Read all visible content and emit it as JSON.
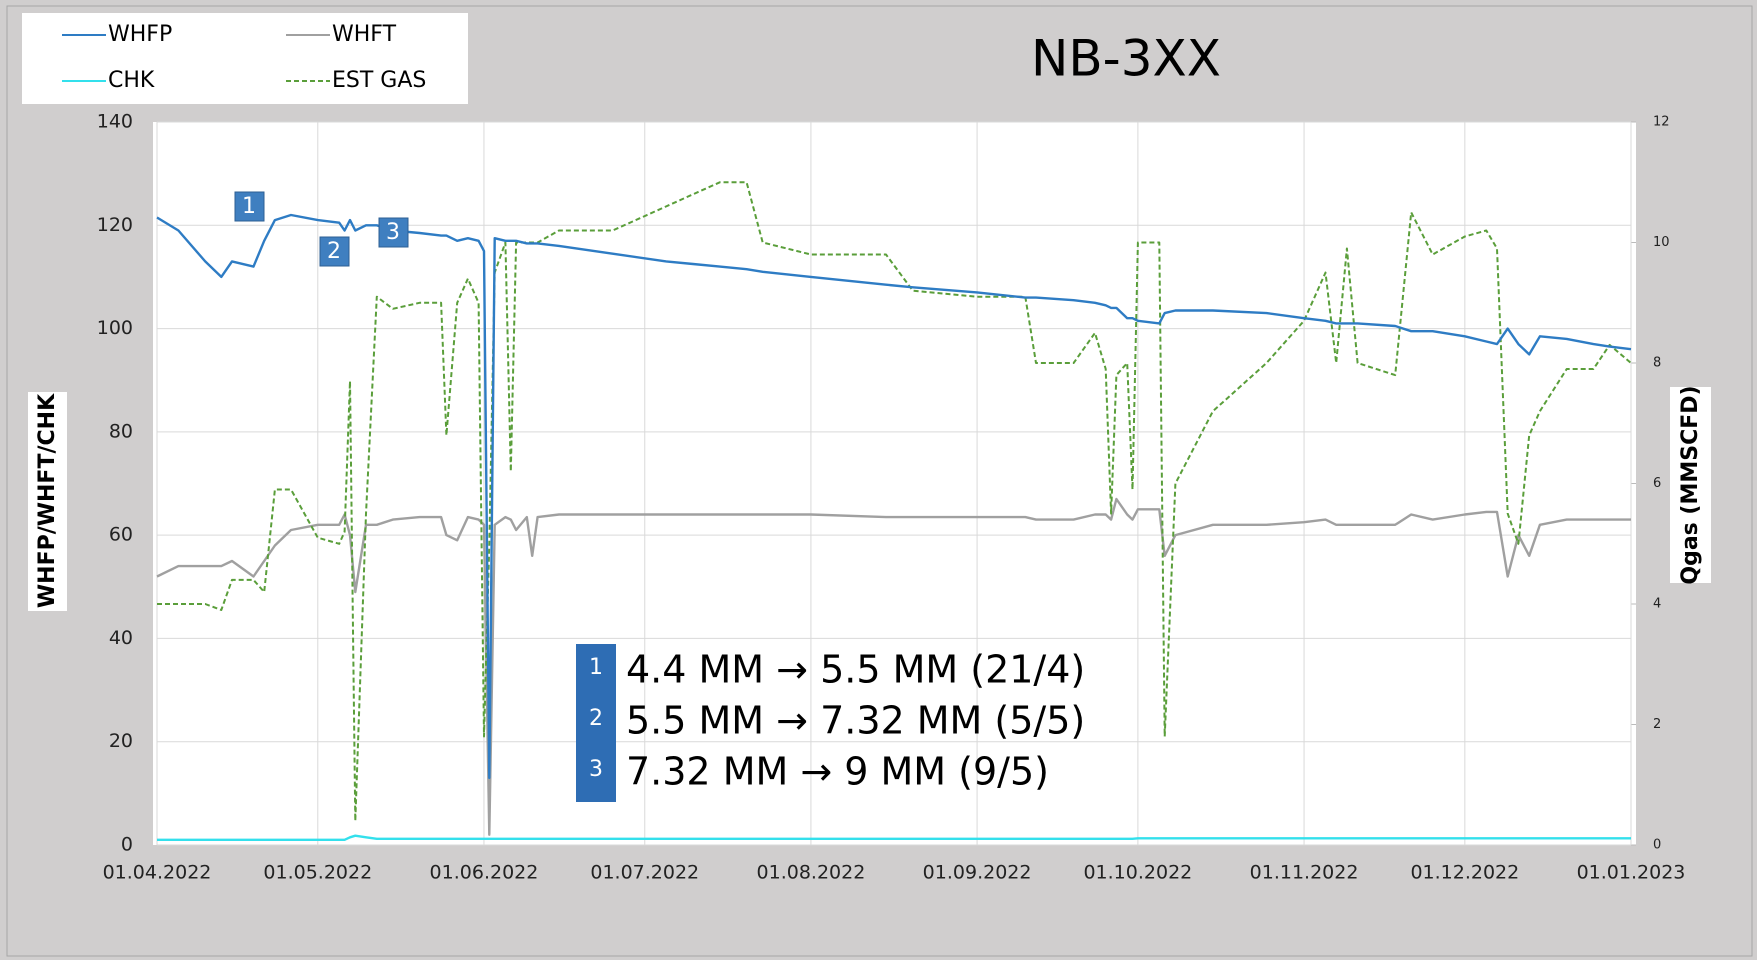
{
  "chart_data": {
    "type": "line",
    "title": "NB-3XX",
    "y_label": "WHFP/WHFT/CHK",
    "y2_label": "Qgas (MMSCFD)",
    "x": [
      "01.04.2022",
      "05.04.2022",
      "10.04.2022",
      "13.04.2022",
      "15.04.2022",
      "19.04.2022",
      "21.04.2022",
      "23.04.2022",
      "26.04.2022",
      "01.05.2022",
      "05.05.2022",
      "06.05.2022",
      "07.05.2022",
      "08.05.2022",
      "10.05.2022",
      "12.05.2022",
      "15.05.2022",
      "20.05.2022",
      "24.05.2022",
      "25.05.2022",
      "27.05.2022",
      "29.05.2022",
      "31.05.2022",
      "01.06.2022",
      "02.06.2022",
      "03.06.2022",
      "05.06.2022",
      "06.06.2022",
      "07.06.2022",
      "09.06.2022",
      "10.06.2022",
      "11.06.2022",
      "15.06.2022",
      "25.06.2022",
      "05.07.2022",
      "10.07.2022",
      "15.07.2022",
      "20.07.2022",
      "23.07.2022",
      "01.08.2022",
      "15.08.2022",
      "20.08.2022",
      "01.09.2022",
      "10.09.2022",
      "12.09.2022",
      "19.09.2022",
      "23.09.2022",
      "25.09.2022",
      "26.09.2022",
      "27.09.2022",
      "29.09.2022",
      "30.09.2022",
      "01.10.2022",
      "05.10.2022",
      "06.10.2022",
      "08.10.2022",
      "15.10.2022",
      "25.10.2022",
      "01.11.2022",
      "05.11.2022",
      "07.11.2022",
      "09.11.2022",
      "11.11.2022",
      "18.11.2022",
      "21.11.2022",
      "25.11.2022",
      "01.12.2022",
      "05.12.2022",
      "07.12.2022",
      "09.12.2022",
      "11.12.2022",
      "13.12.2022",
      "15.12.2022",
      "20.12.2022",
      "25.12.2022",
      "28.12.2022",
      "01.01.2023"
    ],
    "series": [
      {
        "name": "WHFP",
        "color": "#2e7cc4",
        "values": [
          121.5,
          119,
          113,
          110,
          113,
          112,
          117,
          121,
          122,
          121,
          120.5,
          119,
          121,
          119,
          120,
          120,
          119,
          118.5,
          118,
          118,
          117,
          117.5,
          117,
          115,
          13,
          117.5,
          117,
          117,
          117,
          116.5,
          116.5,
          116.5,
          116,
          114.5,
          113,
          112.5,
          112,
          111.5,
          111,
          110,
          108.5,
          108,
          107,
          106,
          106,
          105.5,
          105,
          104.5,
          104,
          104,
          102,
          102,
          101.5,
          101,
          103,
          103.5,
          103.5,
          103,
          102,
          101.5,
          101,
          101,
          101,
          100.5,
          99.5,
          99.5,
          98.5,
          97.5,
          97,
          100,
          97,
          95,
          98.5,
          98,
          97,
          96.5,
          96
        ]
      },
      {
        "name": "WHFT",
        "color": "#a0a0a0",
        "values": [
          52,
          54,
          54,
          54,
          55,
          52,
          55,
          58,
          61,
          62,
          62,
          64,
          60,
          49,
          62,
          62,
          63,
          63.5,
          63.5,
          60,
          59,
          63.5,
          63,
          62,
          2,
          62,
          63.5,
          63,
          61,
          63.5,
          56,
          63.5,
          64,
          64,
          64,
          64,
          64,
          64,
          64,
          64,
          63.5,
          63.5,
          63.5,
          63.5,
          63,
          63,
          64,
          64,
          63,
          67,
          64,
          63,
          65,
          65,
          56,
          60,
          62,
          62,
          62.5,
          63,
          62,
          62,
          62,
          62,
          64,
          63,
          64,
          64.5,
          64.5,
          52,
          60,
          56,
          62,
          63,
          63,
          63,
          63
        ]
      },
      {
        "name": "CHK",
        "color": "#33e0ec",
        "values": [
          1,
          1,
          1,
          1,
          1,
          1,
          1,
          1,
          1,
          1,
          1,
          1,
          1.5,
          1.8,
          1.5,
          1.2,
          1.2,
          1.2,
          1.2,
          1.2,
          1.2,
          1.2,
          1.2,
          1.2,
          1.2,
          1.2,
          1.2,
          1.2,
          1.2,
          1.2,
          1.2,
          1.2,
          1.2,
          1.2,
          1.2,
          1.2,
          1.2,
          1.2,
          1.2,
          1.2,
          1.2,
          1.2,
          1.2,
          1.2,
          1.2,
          1.2,
          1.2,
          1.2,
          1.2,
          1.2,
          1.2,
          1.2,
          1.3,
          1.3,
          1.3,
          1.3,
          1.3,
          1.3,
          1.3,
          1.3,
          1.3,
          1.3,
          1.3,
          1.3,
          1.3,
          1.3,
          1.3,
          1.3,
          1.3,
          1.3,
          1.3,
          1.3,
          1.3,
          1.3,
          1.3,
          1.3,
          1.3
        ]
      },
      {
        "name": "EST GAS",
        "color": "#5a9e3a",
        "dashed": true,
        "axis": "y2",
        "values": [
          4.0,
          4.0,
          4.0,
          3.9,
          4.4,
          4.4,
          4.2,
          5.9,
          5.9,
          5.1,
          5.0,
          5.2,
          7.7,
          0.4,
          5.5,
          9.1,
          8.9,
          9.0,
          9.0,
          6.8,
          9.0,
          9.4,
          9.0,
          1.8,
          5.0,
          9.5,
          10.0,
          6.2,
          10.0,
          10.0,
          10.0,
          10.0,
          10.2,
          10.2,
          10.6,
          10.8,
          11.0,
          11.0,
          10.0,
          9.8,
          9.8,
          9.2,
          9.1,
          9.1,
          8.0,
          8.0,
          8.5,
          7.9,
          5.5,
          7.8,
          8.0,
          5.9,
          10.0,
          10.0,
          1.8,
          6.0,
          7.2,
          8.0,
          8.7,
          9.5,
          8.0,
          9.9,
          8.0,
          7.8,
          10.5,
          9.8,
          10.1,
          10.2,
          9.9,
          5.5,
          5.0,
          6.8,
          7.2,
          7.9,
          7.9,
          8.3,
          8.0
        ]
      }
    ],
    "xlim": [
      "01.04.2022",
      "01.01.2023"
    ],
    "xticks": [
      "01.04.2022",
      "01.05.2022",
      "01.06.2022",
      "01.07.2022",
      "01.08.2022",
      "01.09.2022",
      "01.10.2022",
      "01.11.2022",
      "01.12.2022",
      "01.01.2023"
    ],
    "ylim": [
      0,
      140
    ],
    "yticks": [
      0,
      20,
      40,
      60,
      80,
      100,
      120,
      140
    ],
    "y2lim": [
      0,
      12
    ],
    "y2ticks": [
      0,
      2,
      4,
      6,
      8,
      10,
      12
    ],
    "grid": true,
    "legend": "top-left",
    "markers": [
      "1",
      "2",
      "3"
    ],
    "notes": [
      {
        "label": "1",
        "text": "4.4 MM → 5.5 MM (21/4)"
      },
      {
        "label": "2",
        "text": "5.5 MM → 7.32 MM (5/5)"
      },
      {
        "label": "3",
        "text": "7.32 MM → 9 MM (9/5)"
      }
    ]
  }
}
